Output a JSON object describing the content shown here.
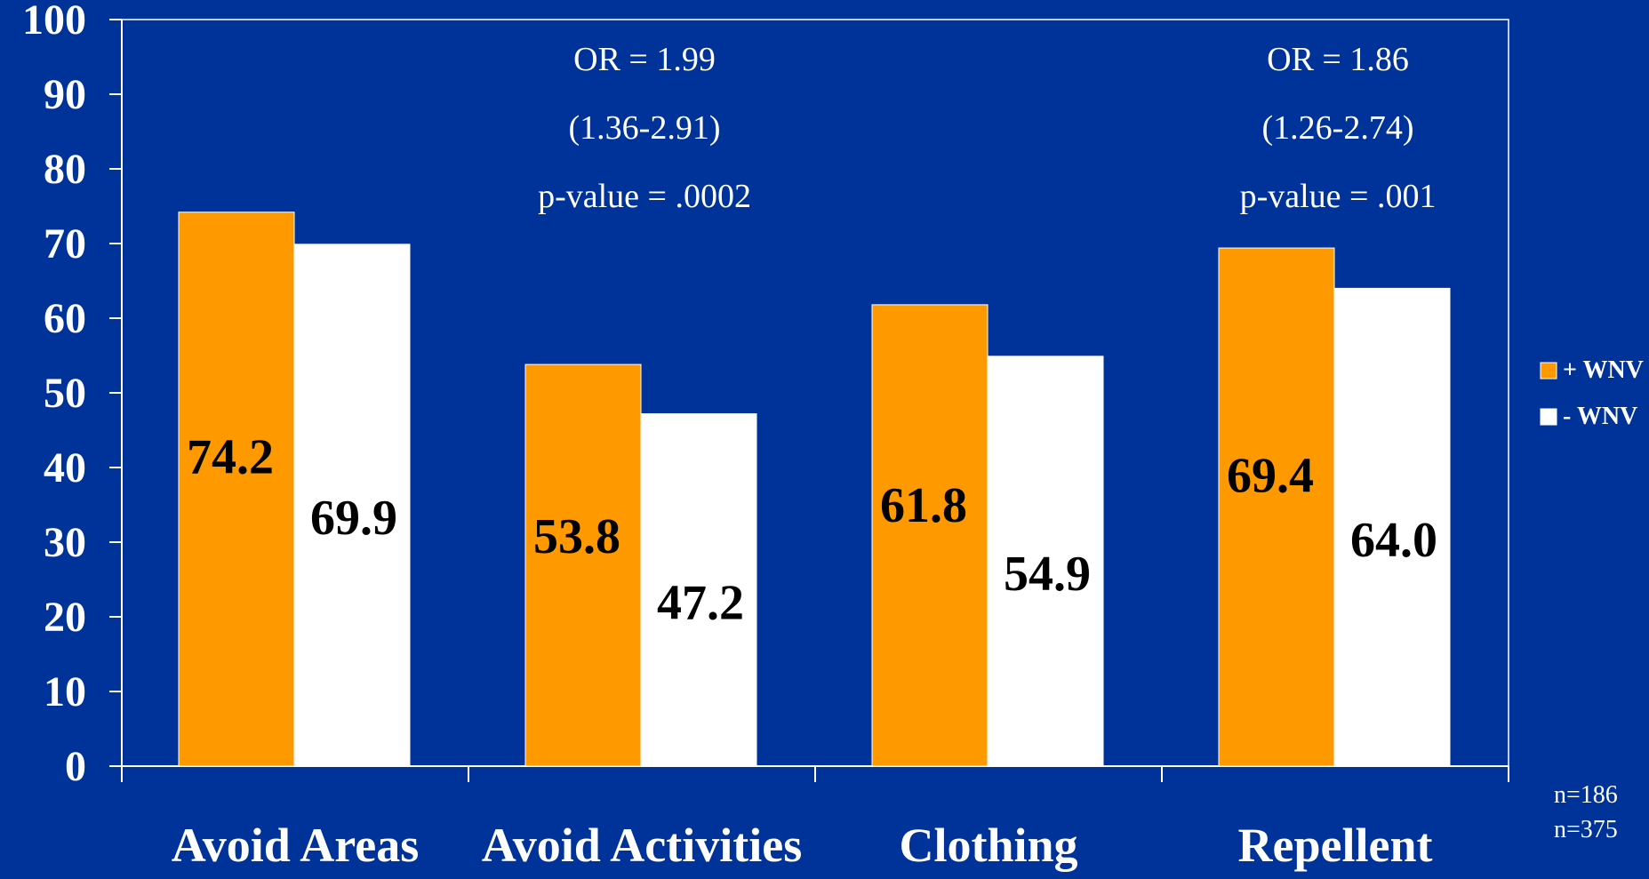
{
  "chart_data": {
    "type": "bar",
    "categories": [
      "Avoid Areas",
      "Avoid Activities",
      "Clothing",
      "Repellent"
    ],
    "series": [
      {
        "name": "+ WNV",
        "values": [
          74.2,
          53.8,
          61.8,
          69.4
        ],
        "color": "#FF9900"
      },
      {
        "name": "- WNV",
        "values": [
          69.9,
          47.2,
          54.9,
          64.0
        ],
        "color": "#FFFFFF"
      }
    ],
    "data_labels": [
      [
        "74.2",
        "53.8",
        "61.8",
        "69.4"
      ],
      [
        "69.9",
        "47.2",
        "54.9",
        "64.0"
      ]
    ],
    "ylim": [
      0,
      100
    ],
    "yticks": [
      "0",
      "10",
      "20",
      "30",
      "40",
      "50",
      "60",
      "70",
      "80",
      "90",
      "100"
    ],
    "grid": false,
    "legend_placement": "right",
    "annotations": [
      {
        "category": "Avoid Activities",
        "lines": [
          "OR = 1.99",
          "(1.36-2.91)",
          "p-value = .0002"
        ]
      },
      {
        "category": "Repellent",
        "lines": [
          "OR = 1.86",
          "(1.26-2.74)",
          "p-value = .001"
        ]
      }
    ],
    "sample_sizes": [
      "n=186",
      "n=375"
    ],
    "title": "",
    "xlabel": "",
    "ylabel": ""
  },
  "colors": {
    "background": "#003399",
    "axis": "#FFFFFF",
    "label_text": "#000000",
    "text": "#FFFFFF"
  }
}
